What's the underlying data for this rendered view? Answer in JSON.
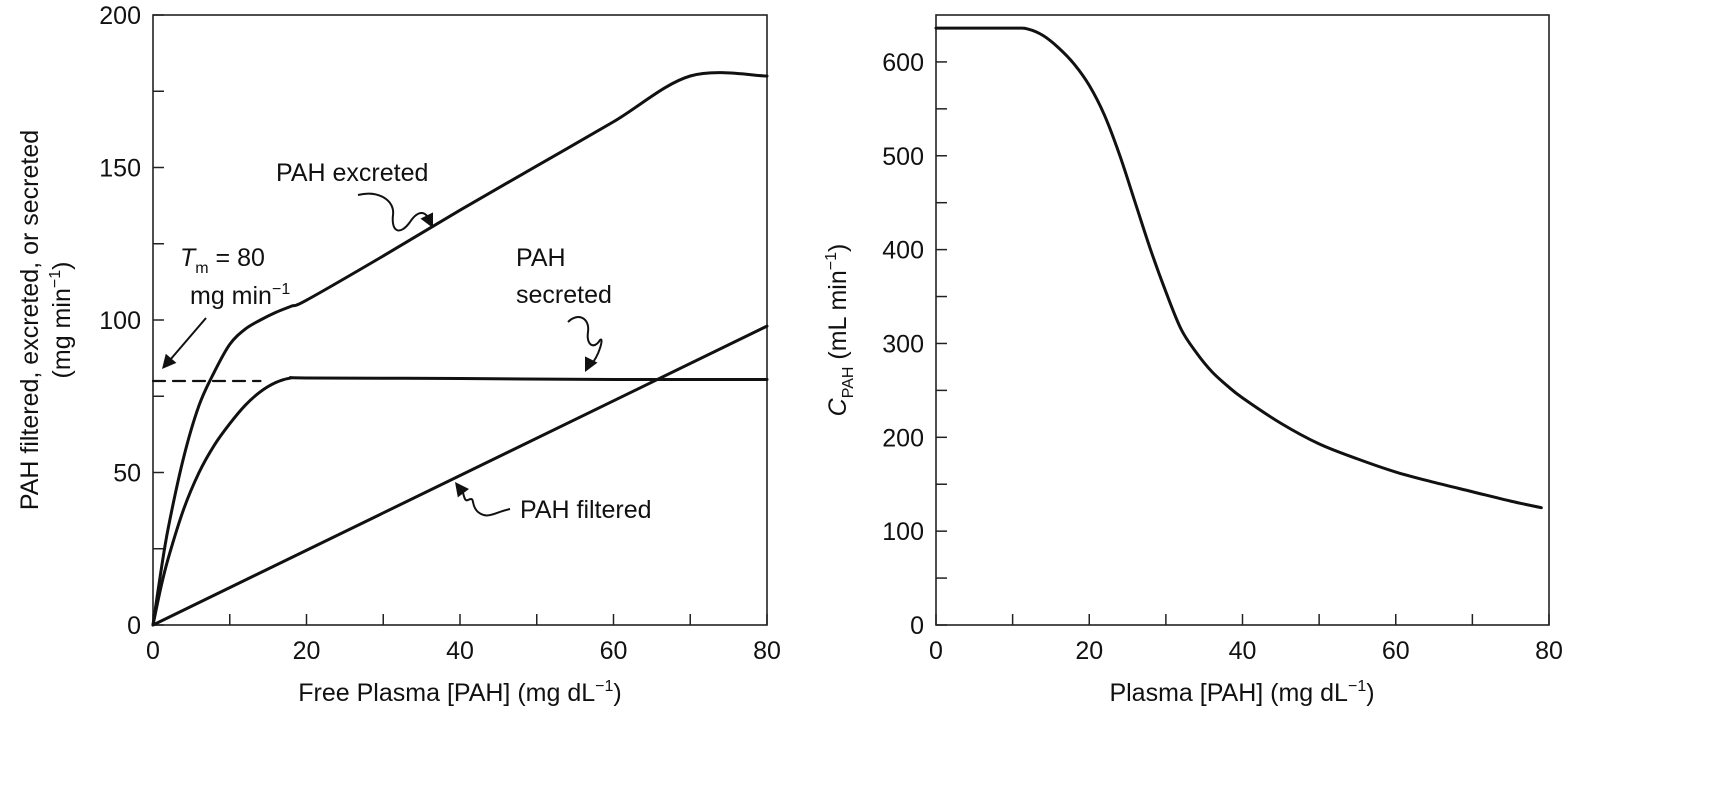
{
  "chart_data": [
    {
      "type": "line",
      "xlabel": "Free Plasma [PAH] (mg dL",
      "xlabel_sup": "−1",
      "xlabel_end": ")",
      "ylabel_line1": "PAH filtered, excreted, or secreted",
      "ylabel_line2": "(mg min",
      "ylabel_sup": "−1",
      "ylabel_end": ")",
      "xlim": [
        0,
        80
      ],
      "ylim": [
        0,
        200
      ],
      "xticks": [
        0,
        20,
        40,
        60,
        80
      ],
      "yticks": [
        0,
        50,
        100,
        150,
        200
      ],
      "xticks_minor": [
        10,
        30,
        50,
        70
      ],
      "yticks_minor": [
        25,
        75,
        125,
        175
      ],
      "grid": false,
      "series": [
        {
          "name": "PAH excreted",
          "x": [
            0,
            1,
            2,
            4,
            6,
            8,
            10,
            12,
            14,
            16,
            18,
            20,
            30,
            40,
            50,
            60,
            70,
            80
          ],
          "y": [
            0,
            17,
            32,
            55,
            72,
            83,
            92,
            97,
            100,
            102.5,
            104.5,
            106.5,
            121,
            136,
            150.5,
            165,
            180,
            180
          ]
        },
        {
          "name": "PAH secreted",
          "x": [
            0,
            1,
            2,
            4,
            6,
            8,
            10,
            12,
            14,
            16,
            18,
            20,
            40,
            60,
            80
          ],
          "y": [
            0,
            12,
            22,
            38,
            50,
            59,
            66,
            72,
            76.5,
            79.5,
            81,
            81,
            80.8,
            80.5,
            80.5
          ]
        },
        {
          "name": "PAH filtered",
          "x": [
            0,
            80
          ],
          "y": [
            0,
            98
          ]
        },
        {
          "name": "",
          "style": "dashed",
          "x": [
            0,
            14
          ],
          "y": [
            80,
            80
          ]
        }
      ],
      "annotations": {
        "excreted_label": "PAH excreted",
        "secreted_label_1": "PAH",
        "secreted_label_2": "secreted",
        "filtered_label": "PAH filtered",
        "tm_symbol": "T",
        "tm_sub": "m",
        "tm_rest": " = 80",
        "tm_unit": "mg min",
        "tm_unit_sup": "−1"
      }
    },
    {
      "type": "line",
      "xlabel": "Plasma [PAH] (mg dL",
      "xlabel_sup": "−1",
      "xlabel_end": ")",
      "ylabel_symbol": "C",
      "ylabel_sub": "PAH",
      "ylabel_rest": " (mL min",
      "ylabel_sup": "−1",
      "ylabel_end": ")",
      "xlim": [
        0,
        80
      ],
      "ylim": [
        0,
        650
      ],
      "xticks": [
        0,
        20,
        40,
        60,
        80
      ],
      "yticks": [
        0,
        100,
        200,
        300,
        400,
        500,
        600
      ],
      "xticks_minor": [
        10,
        30,
        50,
        70
      ],
      "yticks_minor": [
        50,
        150,
        250,
        350,
        450,
        550
      ],
      "grid": false,
      "series": [
        {
          "name": "",
          "x": [
            0,
            10,
            12,
            14,
            16,
            18,
            20,
            22,
            24,
            26,
            28,
            30,
            32,
            34,
            36,
            38,
            40,
            45,
            50,
            55,
            60,
            65,
            70,
            75,
            79
          ],
          "y": [
            636,
            636,
            635,
            628,
            615,
            598,
            575,
            543,
            500,
            450,
            400,
            355,
            315,
            290,
            270,
            255,
            242,
            215,
            193,
            177,
            163,
            152,
            142,
            132,
            125
          ]
        }
      ]
    }
  ]
}
